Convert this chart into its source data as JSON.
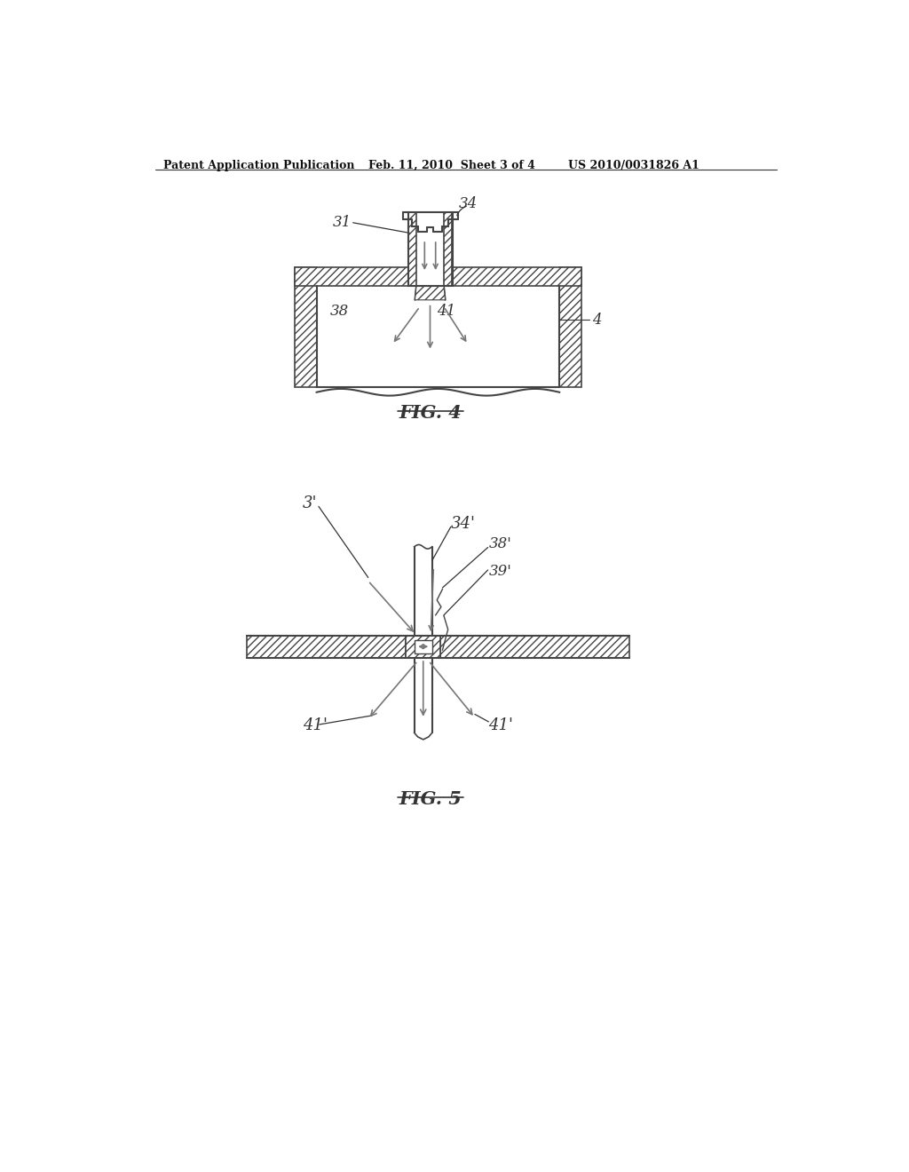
{
  "background_color": "#ffffff",
  "header_left": "Patent Application Publication",
  "header_mid": "Feb. 11, 2010  Sheet 3 of 4",
  "header_right": "US 2010/0031826 A1",
  "fig4_caption": "FIG. 4",
  "fig5_caption": "FIG. 5",
  "line_color": "#444444",
  "arrow_color": "#777777",
  "label_color": "#333333"
}
